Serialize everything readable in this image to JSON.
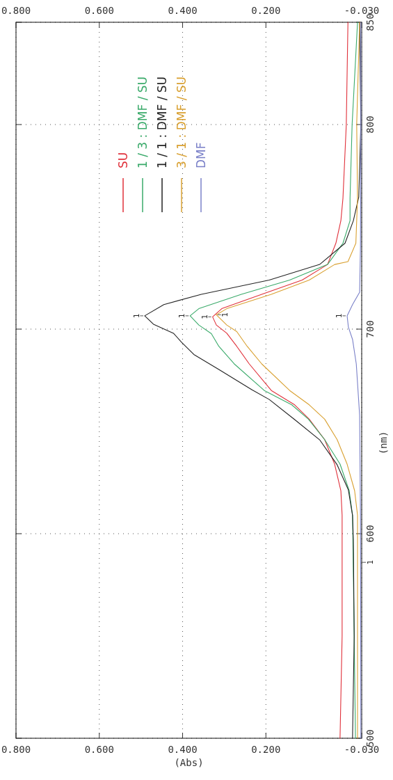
{
  "chart_data": {
    "type": "line",
    "xlabel": "(Abs)",
    "ylabel": "(nm)",
    "xlim": [
      0.8,
      -0.03
    ],
    "xticks": [
      {
        "value": 0.8,
        "label": "0.800"
      },
      {
        "value": 0.6,
        "label": "0.600"
      },
      {
        "value": 0.4,
        "label": "0.400"
      },
      {
        "value": 0.2,
        "label": "0.200"
      },
      {
        "value": -0.03,
        "label": "-0.030"
      }
    ],
    "x2lim": [
      0.8,
      -0.03
    ],
    "x2ticks": [
      {
        "value": 0.8,
        "label": "0.800"
      },
      {
        "value": 0.6,
        "label": "0.600"
      },
      {
        "value": 0.4,
        "label": "0.400"
      },
      {
        "value": 0.2,
        "label": "0.200"
      },
      {
        "value": -0.03,
        "label": "-0.030"
      }
    ],
    "ylim": [
      500,
      850
    ],
    "yticks": [
      500,
      600,
      700,
      800,
      850
    ],
    "grid": true,
    "legend": "top",
    "marker": "none",
    "line_style": "solid",
    "series": [
      {
        "name": "SU",
        "color": "#e0303a",
        "x": [
          0.022,
          0.017,
          0.017,
          0.02,
          0.035,
          0.059,
          0.096,
          0.131,
          0.187,
          0.24,
          0.27,
          0.294,
          0.319,
          0.328,
          0.306,
          0.21,
          0.113,
          0.052,
          0.032,
          0.02,
          0.015,
          0.007,
          0.003
        ],
        "values": [
          500,
          550,
          609,
          621,
          634,
          646,
          656,
          663,
          670,
          683,
          691.6,
          698,
          702,
          706,
          710,
          717,
          724,
          731.6,
          742,
          753,
          764,
          800,
          850
        ]
      },
      {
        "name": "1 / 3 : DMF / SU",
        "color": "#3aaa6a",
        "x": [
          -0.015,
          -0.012,
          -0.008,
          0.0,
          0.022,
          0.059,
          0.098,
          0.138,
          0.204,
          0.276,
          0.313,
          0.331,
          0.361,
          0.382,
          0.361,
          0.259,
          0.143,
          0.052,
          0.015,
          -0.002,
          -0.002,
          -0.007,
          -0.02
        ],
        "values": [
          500,
          550,
          609,
          621,
          634,
          646,
          656,
          663,
          670,
          683,
          691.6,
          697.8,
          702,
          706.5,
          710,
          717,
          724,
          731.6,
          742,
          753,
          764,
          800,
          850
        ]
      },
      {
        "name": "1 / 1 : DMF / SU",
        "color": "#222222",
        "x": [
          -0.008,
          -0.012,
          -0.01,
          -0.008,
          0.002,
          0.029,
          0.071,
          0.131,
          0.192,
          0.234,
          0.313,
          0.373,
          0.403,
          0.422,
          0.47,
          0.491,
          0.445,
          0.355,
          0.192,
          0.071,
          0.01,
          -0.01,
          -0.023,
          -0.028,
          -0.025
        ],
        "values": [
          500,
          550,
          597,
          609,
          621.4,
          633.7,
          645.9,
          655.8,
          665.6,
          670.4,
          680.3,
          687.6,
          693.7,
          698,
          702.4,
          706.5,
          712,
          717,
          724,
          731.6,
          742,
          753,
          764.6,
          800,
          850
        ]
      },
      {
        "name": "3 / 1 : DMF / SU",
        "color": "#d9a030",
        "x": [
          -0.02,
          -0.02,
          -0.02,
          -0.013,
          0.005,
          0.029,
          0.059,
          0.096,
          0.143,
          0.21,
          0.245,
          0.27,
          0.294,
          0.319,
          0.294,
          0.187,
          0.096,
          0.035,
          0.003,
          -0.016,
          -0.02,
          -0.018,
          -0.025
        ],
        "values": [
          500,
          550,
          609,
          621,
          634,
          646,
          656,
          663,
          670,
          683,
          691.6,
          698.8,
          702,
          707,
          710,
          717,
          724,
          731.6,
          733,
          742,
          764,
          800,
          850
        ]
      },
      {
        "name": "DMF",
        "color": "#7a80c8",
        "x": [
          -0.028,
          -0.027,
          -0.025,
          -0.017,
          -0.008,
          0.002,
          0.005,
          -0.008,
          -0.025,
          -0.027,
          -0.028,
          -0.028
        ],
        "values": [
          500,
          609,
          658,
          683,
          695,
          701,
          706.5,
          712,
          718,
          740,
          800,
          850
        ]
      }
    ],
    "annotations": [
      {
        "text": "1",
        "x": 0.491,
        "y": 706.5
      },
      {
        "text": "1",
        "x": 0.382,
        "y": 706.5
      },
      {
        "text": "1",
        "x": 0.328,
        "y": 706
      },
      {
        "text": "1",
        "x": 0.319,
        "y": 707
      },
      {
        "text": "1",
        "x": 0.005,
        "y": 706.5
      },
      {
        "text": "1",
        "x": -0.025,
        "y": 586
      }
    ]
  }
}
